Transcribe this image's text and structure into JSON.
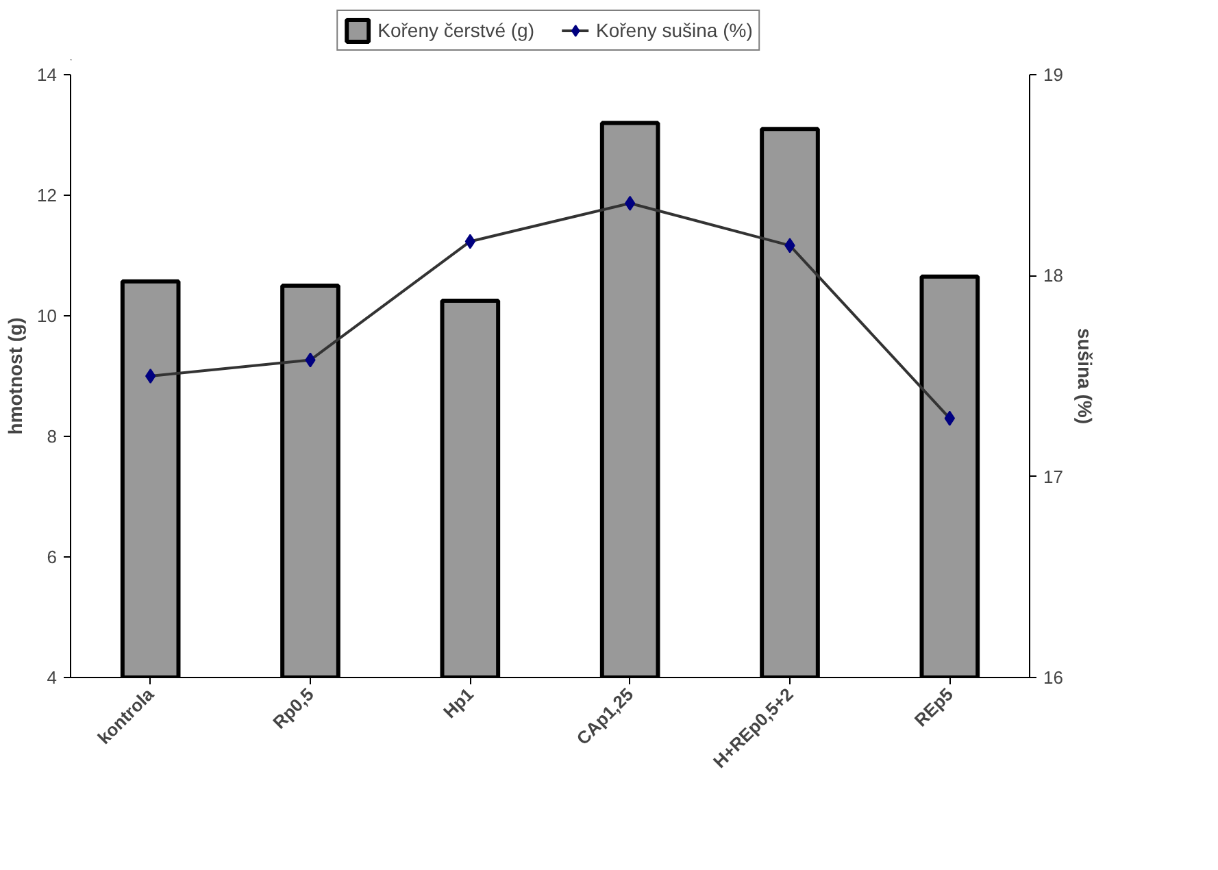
{
  "chart_data": {
    "type": "bar",
    "ylabel": "hmotnost (g)",
    "y2label": "sušina (%)",
    "categories": [
      "kontrola",
      "Rp0,5",
      "Hp1",
      "CAp1,25",
      "H+REp0,5+2",
      "REp5"
    ],
    "ylim": [
      4,
      14
    ],
    "yticks": [
      4,
      6,
      8,
      10,
      12,
      14
    ],
    "y2lim": [
      16,
      19
    ],
    "y2ticks": [
      16,
      17,
      18,
      19
    ],
    "grid": false,
    "legend": "top",
    "marker": "diamond",
    "line_style": "solid",
    "series": [
      {
        "name": "Kořeny čerstvé (g)",
        "color": "#999999",
        "values": [
          10.57,
          10.5,
          10.25,
          13.2,
          13.1,
          10.65
        ]
      },
      {
        "name": "Kořeny sušina (%)",
        "type": "line",
        "axis": "y2",
        "color": "#000080",
        "values": [
          17.5,
          17.58,
          18.17,
          18.36,
          18.15,
          17.29
        ]
      }
    ]
  }
}
